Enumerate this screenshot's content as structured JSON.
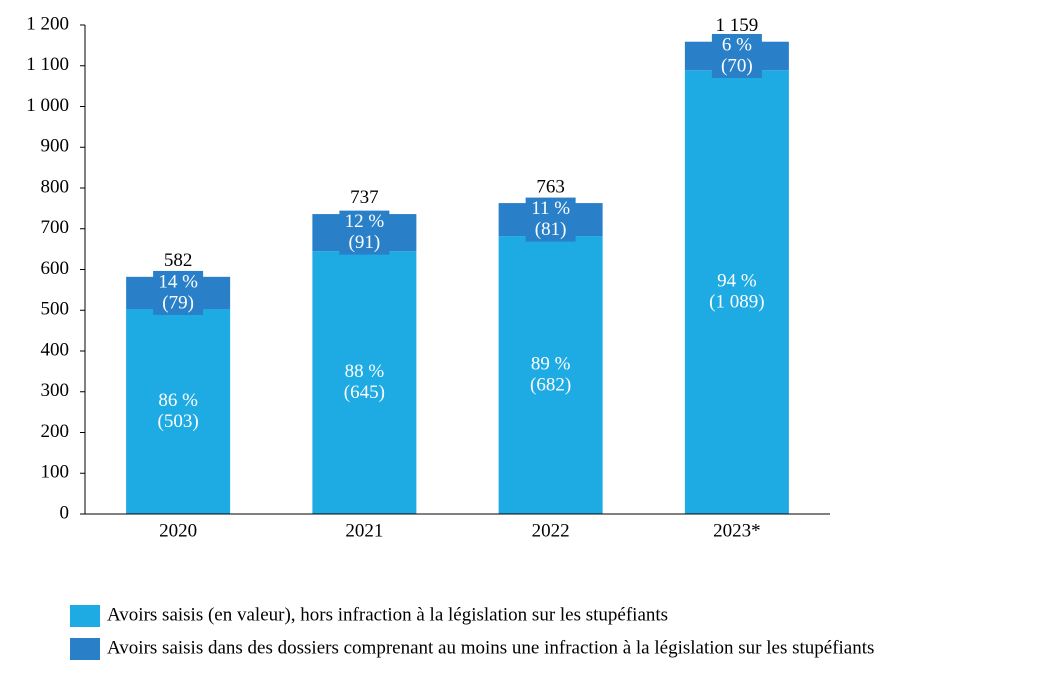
{
  "chart_data": {
    "type": "stacked_bar",
    "categories": [
      "2020",
      "2021",
      "2022",
      "2023*"
    ],
    "series": [
      {
        "name": "Avoirs saisis (en valeur), hors infraction à la législation sur les stupéfiants",
        "color": "#1eaae2",
        "values": [
          503,
          645,
          682,
          1089
        ],
        "value_labels": [
          "(503)",
          "(645)",
          "(682)",
          "(1 089)"
        ],
        "share_labels": [
          "86 %",
          "88 %",
          "89 %",
          "94 %"
        ]
      },
      {
        "name": "Avoirs saisis dans des dossiers comprenant au moins une infraction à la législation sur les stupéfiants",
        "color": "#2a80c8",
        "values": [
          79,
          91,
          81,
          70
        ],
        "value_labels": [
          "(79)",
          "(91)",
          "(81)",
          "(70)"
        ],
        "share_labels": [
          "14 %",
          "12 %",
          "11 %",
          "6 %"
        ]
      }
    ],
    "totals": [
      582,
      737,
      763,
      1159
    ],
    "total_labels": [
      "582",
      "737",
      "763",
      "1 159"
    ],
    "ylim": [
      0,
      1200
    ],
    "yticks": [
      0,
      100,
      200,
      300,
      400,
      500,
      600,
      700,
      800,
      900,
      {
        "value": 1000,
        "label": "1 000"
      },
      {
        "value": 1100,
        "label": "1 100"
      },
      {
        "value": 1200,
        "label": "1 200"
      }
    ],
    "grid": false
  }
}
